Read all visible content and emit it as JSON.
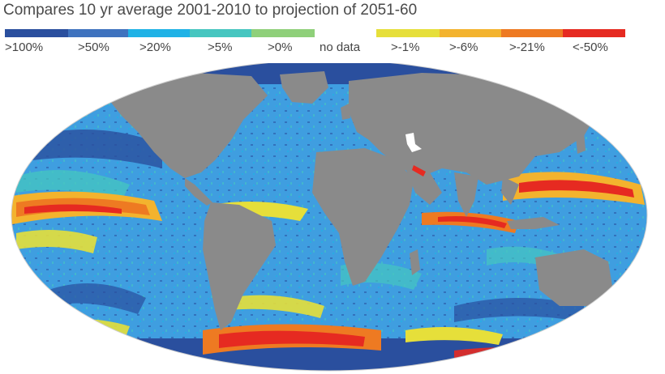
{
  "title": "Compares 10 yr average 2001-2010 to projection of 2051-60",
  "legend": [
    {
      "label": ">100%",
      "color": "#2a4f9e"
    },
    {
      "label": ">50%",
      "color": "#3f73bf"
    },
    {
      "label": ">20%",
      "color": "#1fb2e6"
    },
    {
      "label": ">5%",
      "color": "#46c6c0"
    },
    {
      "label": ">0%",
      "color": "#8fd07a"
    },
    {
      "label": "no data",
      "color": "#ffffff"
    },
    {
      "label": ">-1%",
      "color": "#e6df3a"
    },
    {
      "label": ">-6%",
      "color": "#f3b32e"
    },
    {
      "label": ">-21%",
      "color": "#ee7a22"
    },
    {
      "label": "<-50%",
      "color": "#e62a21"
    }
  ],
  "map": {
    "land_color": "#8a8a8a",
    "ocean_base_color": "#3f9ee0"
  }
}
